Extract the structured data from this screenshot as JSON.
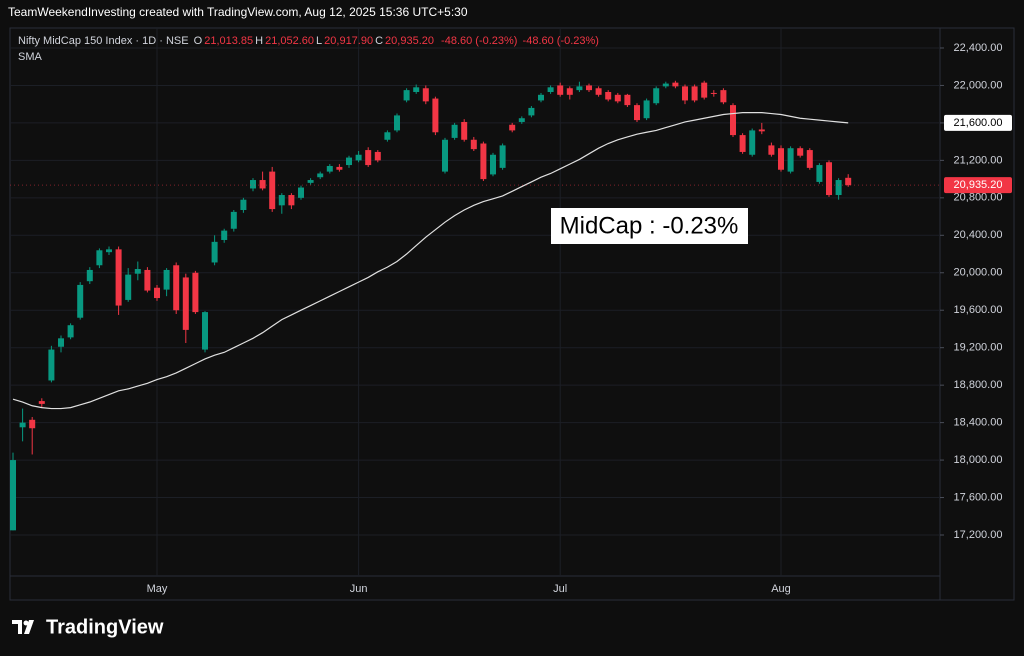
{
  "header": "TeamWeekendInvesting created with TradingView.com, Aug 12, 2025 15:36 UTC+5:30",
  "legend": {
    "symbol": "Nifty MidCap 150 Index · 1D · NSE",
    "ohlc": [
      {
        "key": "O",
        "value": "21,013.85"
      },
      {
        "key": "H",
        "value": "21,052.60"
      },
      {
        "key": "L",
        "value": "20,917.90"
      },
      {
        "key": "C",
        "value": "20,935.20"
      }
    ],
    "change": "-48.60 (-0.23%)",
    "change_alt": "-48.60 (-0.23%)",
    "indicator": "SMA"
  },
  "logo": "TradingView",
  "chart_data": {
    "type": "candlestick",
    "annotation": "MidCap : -0.23%",
    "up_color": "#089981",
    "down_color": "#f23645",
    "grid": true,
    "categories": [
      null,
      null,
      null,
      null,
      null,
      null,
      null,
      null,
      null,
      null,
      null,
      null,
      null,
      null,
      null,
      "May",
      null,
      null,
      null,
      null,
      null,
      null,
      null,
      null,
      null,
      null,
      null,
      null,
      null,
      null,
      null,
      null,
      null,
      null,
      null,
      null,
      "Jun",
      null,
      null,
      null,
      null,
      null,
      null,
      null,
      null,
      null,
      null,
      null,
      null,
      null,
      null,
      null,
      null,
      null,
      null,
      null,
      null,
      "Jul",
      null,
      null,
      null,
      null,
      null,
      null,
      null,
      null,
      null,
      null,
      null,
      null,
      null,
      null,
      null,
      null,
      null,
      null,
      null,
      null,
      null,
      null,
      "Aug",
      null,
      null,
      null,
      null,
      null,
      null,
      null
    ],
    "open": [
      17250,
      18350,
      18430,
      18630,
      18850,
      19210,
      19310,
      19520,
      19910,
      20080,
      20220,
      20250,
      19710,
      19990,
      20030,
      19840,
      19820,
      20080,
      19950,
      20000,
      19180,
      20110,
      20350,
      20470,
      20670,
      20900,
      20990,
      21080,
      20720,
      20830,
      20800,
      20960,
      21020,
      21080,
      21130,
      21150,
      21200,
      21310,
      21290,
      21420,
      21520,
      21840,
      21930,
      21970,
      21860,
      21080,
      21440,
      21610,
      21420,
      21380,
      21050,
      21120,
      21580,
      21610,
      21680,
      21840,
      21930,
      22000,
      21970,
      21950,
      22000,
      21970,
      21930,
      21900,
      21900,
      21790,
      21650,
      21810,
      21990,
      22030,
      21990,
      21990,
      22030,
      21920,
      21950,
      21790,
      21470,
      21260,
      21530,
      21360,
      21330,
      21080,
      21330,
      21310,
      20970,
      21180,
      20830,
      21013.85
    ],
    "high": [
      18080,
      18550,
      18460,
      18660,
      19220,
      19330,
      19460,
      19900,
      20060,
      20260,
      20280,
      20280,
      20050,
      20120,
      20060,
      19870,
      20050,
      20110,
      19990,
      20020,
      19590,
      20400,
      20470,
      20670,
      20800,
      21010,
      21080,
      21130,
      20850,
      20850,
      20930,
      21010,
      21080,
      21160,
      21160,
      21250,
      21300,
      21340,
      21310,
      21520,
      21700,
      21970,
      22010,
      22000,
      21880,
      21440,
      21600,
      21640,
      21450,
      21400,
      21280,
      21380,
      21600,
      21670,
      21780,
      21920,
      22000,
      22030,
      21990,
      22040,
      22020,
      21990,
      21950,
      21920,
      21910,
      21810,
      21860,
      21990,
      22040,
      22050,
      22010,
      22010,
      22050,
      21950,
      21970,
      21810,
      21490,
      21540,
      21600,
      21390,
      21360,
      21350,
      21350,
      21330,
      21170,
      21200,
      21010,
      21052.6
    ],
    "low": [
      17250,
      18200,
      18060,
      18560,
      18830,
      19150,
      19290,
      19500,
      19880,
      20050,
      20190,
      19550,
      19690,
      19920,
      19790,
      19700,
      19750,
      19560,
      19250,
      19560,
      19150,
      20080,
      20320,
      20440,
      20640,
      20870,
      20880,
      20650,
      20630,
      20680,
      20780,
      20940,
      21000,
      21060,
      21080,
      21120,
      21180,
      21130,
      21180,
      21400,
      21500,
      21820,
      21910,
      21800,
      21470,
      21060,
      21420,
      21400,
      21300,
      20980,
      21030,
      21100,
      21500,
      21590,
      21660,
      21820,
      21910,
      21880,
      21850,
      21930,
      21930,
      21880,
      21830,
      21810,
      21770,
      21610,
      21630,
      21790,
      21970,
      21970,
      21800,
      21820,
      21850,
      21880,
      21800,
      21450,
      21270,
      21240,
      21480,
      21240,
      21080,
      21060,
      21230,
      21100,
      20950,
      20810,
      20780,
      20917.9
    ],
    "close": [
      18000,
      18400,
      18340,
      18600,
      19180,
      19300,
      19440,
      19870,
      20030,
      20240,
      20250,
      19650,
      19980,
      20040,
      19810,
      19730,
      20030,
      19600,
      19390,
      19580,
      19580,
      20330,
      20450,
      20650,
      20780,
      20990,
      20900,
      20680,
      20830,
      20720,
      20910,
      20990,
      21060,
      21140,
      21100,
      21230,
      21260,
      21150,
      21200,
      21500,
      21680,
      21950,
      21980,
      21830,
      21500,
      21420,
      21580,
      21420,
      21320,
      21000,
      21260,
      21360,
      21520,
      21650,
      21760,
      21900,
      21980,
      21900,
      21900,
      21990,
      21950,
      21900,
      21850,
      21830,
      21790,
      21630,
      21840,
      21970,
      22020,
      21990,
      21840,
      21840,
      21870,
      21910,
      21820,
      21470,
      21290,
      21520,
      21510,
      21260,
      21100,
      21330,
      21250,
      21120,
      21150,
      20830,
      20990,
      20935.2
    ],
    "sma": {
      "name": "SMA",
      "color": "#e0e0e0",
      "values": [
        18650,
        18620,
        18580,
        18560,
        18550,
        18550,
        18560,
        18590,
        18620,
        18660,
        18700,
        18740,
        18760,
        18790,
        18820,
        18860,
        18890,
        18930,
        18980,
        19030,
        19080,
        19120,
        19150,
        19200,
        19250,
        19300,
        19360,
        19430,
        19500,
        19550,
        19600,
        19650,
        19700,
        19750,
        19800,
        19850,
        19900,
        19950,
        20010,
        20060,
        20120,
        20200,
        20290,
        20380,
        20460,
        20540,
        20610,
        20670,
        20720,
        20760,
        20790,
        20820,
        20870,
        20920,
        20970,
        21020,
        21060,
        21110,
        21160,
        21210,
        21270,
        21330,
        21380,
        21420,
        21450,
        21480,
        21500,
        21520,
        21550,
        21580,
        21610,
        21630,
        21650,
        21670,
        21690,
        21700,
        21710,
        21710,
        21710,
        21700,
        21690,
        21670,
        21650,
        21640,
        21630,
        21620,
        21610,
        21600
      ],
      "last_label": {
        "value": 21600,
        "label": "21,600.00"
      }
    },
    "last_price": {
      "value": 20935.2,
      "label": "20,935.20"
    },
    "ylim": [
      16805,
      22592
    ],
    "yticks": [
      {
        "value": 17200,
        "label": "17,200.00"
      },
      {
        "value": 17600,
        "label": "17,600.00"
      },
      {
        "value": 18000,
        "label": "18,000.00"
      },
      {
        "value": 18400,
        "label": "18,400.00"
      },
      {
        "value": 18800,
        "label": "18,800.00"
      },
      {
        "value": 19200,
        "label": "19,200.00"
      },
      {
        "value": 19600,
        "label": "19,600.00"
      },
      {
        "value": 20000,
        "label": "20,000.00"
      },
      {
        "value": 20400,
        "label": "20,400.00"
      },
      {
        "value": 20800,
        "label": "20,800.00"
      },
      {
        "value": 21200,
        "label": "21,200.00"
      },
      {
        "value": 21600,
        "label": "21,600.00"
      },
      {
        "value": 22000,
        "label": "22,000.00"
      },
      {
        "value": 22400,
        "label": "22,400.00"
      }
    ]
  }
}
